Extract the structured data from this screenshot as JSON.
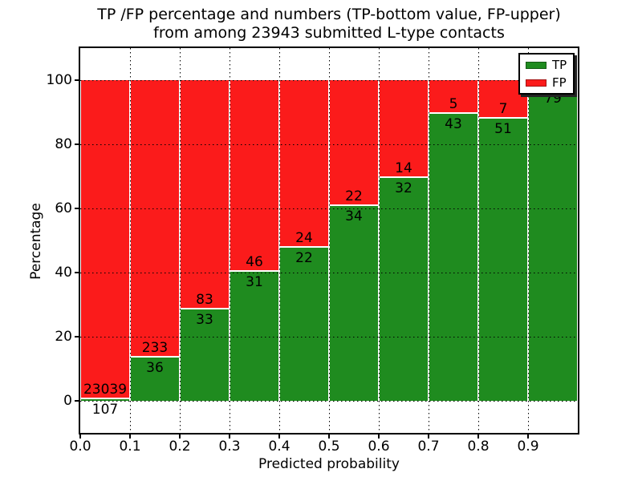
{
  "figure": {
    "title_line1": "TP /FP percentage and numbers (TP-bottom value, FP-upper)",
    "title_line2": "from among 23943 submitted L-type contacts",
    "xlabel": "Predicted probability",
    "ylabel": "Percentage"
  },
  "colors": {
    "tp_green": "#1f8b1f",
    "fp_red": "#fb1b1b",
    "axis": "#000000",
    "background": "#ffffff"
  },
  "legend": {
    "items": [
      {
        "label": "TP",
        "color_key": "tp_green"
      },
      {
        "label": "FP",
        "color_key": "fp_red"
      }
    ]
  },
  "chart_data": {
    "type": "bar",
    "stacked": true,
    "title": "TP /FP percentage and numbers (TP-bottom value, FP-upper) from among 23943 submitted L-type contacts",
    "xlabel": "Predicted probability",
    "ylabel": "Percentage",
    "total_contacts": 23943,
    "xlim": [
      0.0,
      1.0
    ],
    "ylim": [
      -10,
      110
    ],
    "grid": true,
    "legend_position": "upper-right",
    "xticks": [
      "0.0",
      "0.1",
      "0.2",
      "0.3",
      "0.4",
      "0.5",
      "0.6",
      "0.7",
      "0.8",
      "0.9"
    ],
    "yticks": [
      "0",
      "20",
      "40",
      "60",
      "80",
      "100"
    ],
    "ytick_values": [
      0,
      20,
      40,
      60,
      80,
      100
    ],
    "series_names": [
      "TP",
      "FP"
    ],
    "bars": [
      {
        "range": "0.0-0.1",
        "tp": 107,
        "fp": 23039,
        "tp_label": "107",
        "fp_label": "23039"
      },
      {
        "range": "0.1-0.2",
        "tp": 36,
        "fp": 233,
        "tp_label": "36",
        "fp_label": "233"
      },
      {
        "range": "0.2-0.3",
        "tp": 33,
        "fp": 83,
        "tp_label": "33",
        "fp_label": "83"
      },
      {
        "range": "0.3-0.4",
        "tp": 31,
        "fp": 46,
        "tp_label": "31",
        "fp_label": "46"
      },
      {
        "range": "0.4-0.5",
        "tp": 22,
        "fp": 24,
        "tp_label": "22",
        "fp_label": "24"
      },
      {
        "range": "0.5-0.6",
        "tp": 34,
        "fp": 22,
        "tp_label": "34",
        "fp_label": "22"
      },
      {
        "range": "0.6-0.7",
        "tp": 32,
        "fp": 14,
        "tp_label": "32",
        "fp_label": "14"
      },
      {
        "range": "0.7-0.8",
        "tp": 43,
        "fp": 5,
        "tp_label": "43",
        "fp_label": "5"
      },
      {
        "range": "0.8-0.9",
        "tp": 51,
        "fp": 7,
        "tp_label": "51",
        "fp_label": "7"
      },
      {
        "range": "0.9-1.0",
        "tp": 79,
        "fp": 2,
        "tp_label": "79",
        "fp_label": ""
      }
    ]
  }
}
